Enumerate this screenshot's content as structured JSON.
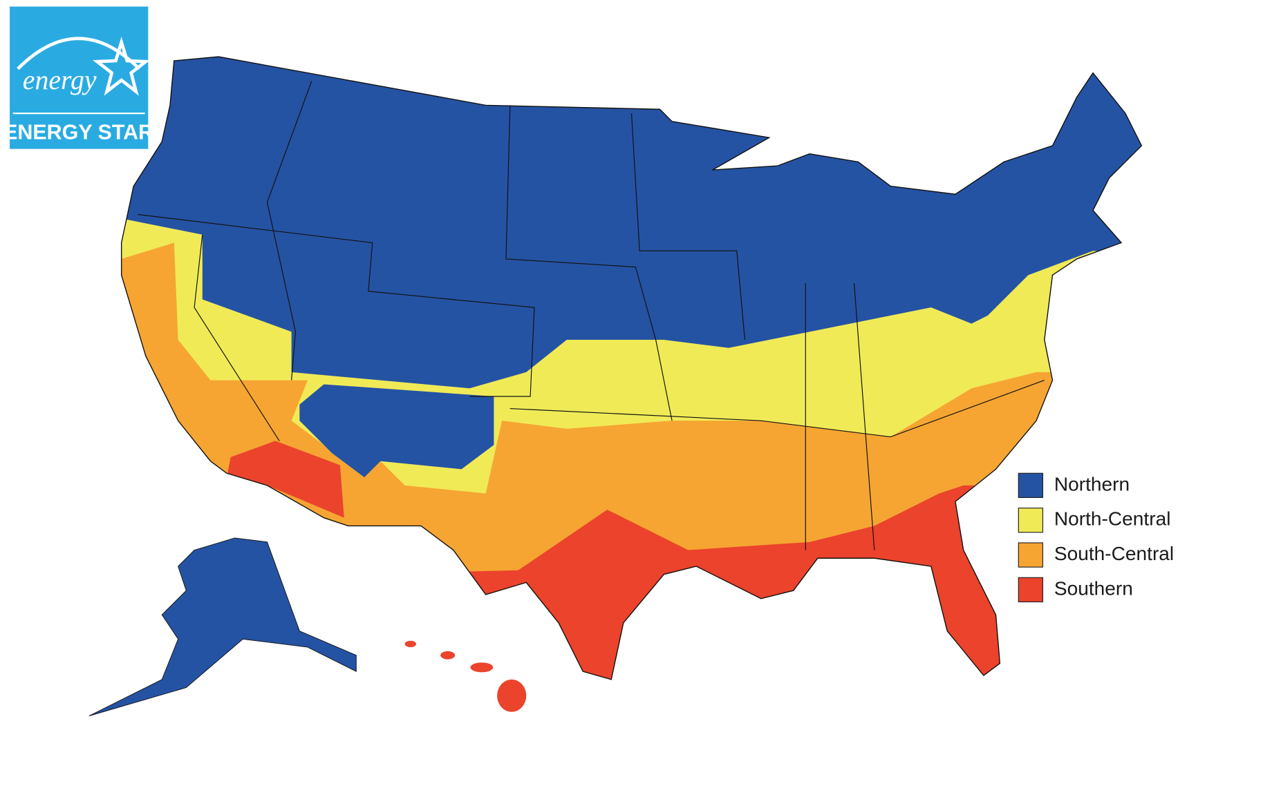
{
  "logo": {
    "script": "energy",
    "label": "ENERGY STAR"
  },
  "legend": [
    {
      "label": "Northern",
      "color": "#2553a3"
    },
    {
      "label": "North-Central",
      "color": "#f0ea57"
    },
    {
      "label": "South-Central",
      "color": "#f6a533"
    },
    {
      "label": "Southern",
      "color": "#eb432c"
    }
  ]
}
